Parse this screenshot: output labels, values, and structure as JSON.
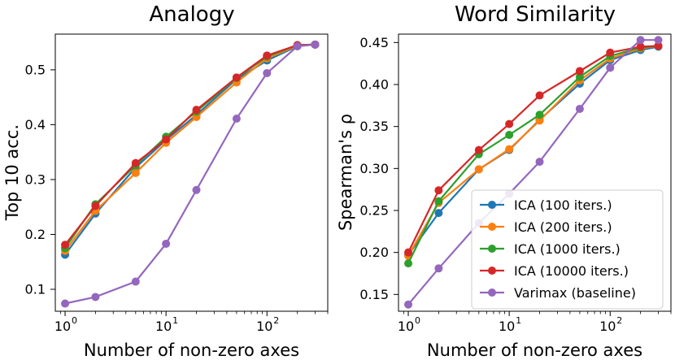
{
  "chart_data": [
    {
      "type": "line",
      "title": "Analogy",
      "xlabel": "Number of non-zero axes",
      "ylabel": "Top 10 acc.",
      "xscale": "log",
      "x": [
        1,
        2,
        5,
        10,
        20,
        50,
        100,
        200,
        300
      ],
      "xlim": [
        0.8,
        400
      ],
      "ylim": [
        0.06,
        0.565
      ],
      "yticks": [
        0.1,
        0.2,
        0.3,
        0.4,
        0.5
      ],
      "ytick_labels": [
        "0.1",
        "0.2",
        "0.3",
        "0.4",
        "0.5"
      ],
      "series": [
        {
          "name": "ICA (100 iters.)",
          "color": "#1f77b4",
          "values": [
            0.163,
            0.238,
            0.322,
            0.372,
            0.418,
            0.483,
            0.517,
            0.543,
            0.546
          ]
        },
        {
          "name": "ICA (200 iters.)",
          "color": "#ff7f0e",
          "values": [
            0.17,
            0.243,
            0.312,
            0.367,
            0.414,
            0.477,
            0.521,
            0.544,
            0.546
          ]
        },
        {
          "name": "ICA (1000 iters.)",
          "color": "#2ca02c",
          "values": [
            0.175,
            0.255,
            0.326,
            0.378,
            0.424,
            0.485,
            0.524,
            0.545,
            0.546
          ]
        },
        {
          "name": "ICA (10000 iters.)",
          "color": "#d62728",
          "values": [
            0.181,
            0.252,
            0.33,
            0.373,
            0.427,
            0.486,
            0.526,
            0.545,
            0.546
          ]
        },
        {
          "name": "Varimax (baseline)",
          "color": "#9467bd",
          "values": [
            0.074,
            0.086,
            0.114,
            0.183,
            0.281,
            0.411,
            0.494,
            0.543,
            0.546
          ]
        }
      ]
    },
    {
      "type": "line",
      "title": "Word Similarity",
      "xlabel": "Number of non-zero axes",
      "ylabel": "Spearman's ρ",
      "xscale": "log",
      "x": [
        1,
        2,
        5,
        10,
        20,
        50,
        100,
        200,
        300
      ],
      "xlim": [
        0.8,
        400
      ],
      "ylim": [
        0.13,
        0.46
      ],
      "yticks": [
        0.15,
        0.2,
        0.25,
        0.3,
        0.35,
        0.4,
        0.45
      ],
      "ytick_labels": [
        "0.15",
        "0.20",
        "0.25",
        "0.30",
        "0.35",
        "0.40",
        "0.45"
      ],
      "legend_position": "lower-right",
      "series": [
        {
          "name": "ICA (100 iters.)",
          "color": "#1f77b4",
          "values": [
            0.197,
            0.247,
            0.299,
            0.322,
            0.358,
            0.401,
            0.429,
            0.441,
            0.445
          ]
        },
        {
          "name": "ICA (200 iters.)",
          "color": "#ff7f0e",
          "values": [
            0.196,
            0.259,
            0.299,
            0.323,
            0.357,
            0.405,
            0.431,
            0.443,
            0.446
          ]
        },
        {
          "name": "ICA (1000 iters.)",
          "color": "#2ca02c",
          "values": [
            0.187,
            0.261,
            0.317,
            0.34,
            0.364,
            0.409,
            0.434,
            0.444,
            0.446
          ]
        },
        {
          "name": "ICA (10000 iters.)",
          "color": "#d62728",
          "values": [
            0.2,
            0.274,
            0.322,
            0.353,
            0.387,
            0.416,
            0.438,
            0.445,
            0.446
          ]
        },
        {
          "name": "Varimax (baseline)",
          "color": "#9467bd",
          "values": [
            0.138,
            0.181,
            0.235,
            0.27,
            0.308,
            0.371,
            0.42,
            0.453,
            0.453
          ]
        }
      ]
    }
  ]
}
